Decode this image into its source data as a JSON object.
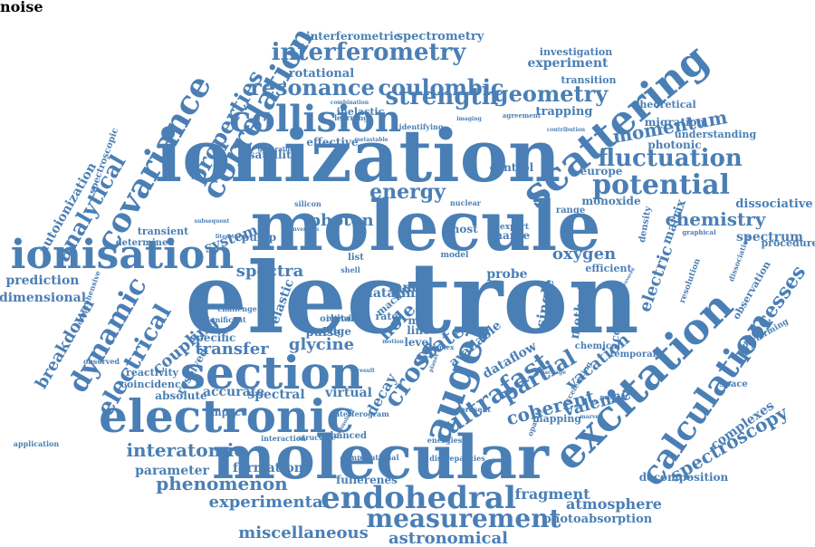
{
  "colors": {
    "word": "#4a7fb5",
    "background": "#ffffff"
  },
  "words": [
    {
      "text": "electron",
      "rotate": 0
    },
    {
      "text": "ionization",
      "rotate": 0
    },
    {
      "text": "molecule",
      "rotate": 0
    },
    {
      "text": "molecular",
      "rotate": 0
    },
    {
      "text": "electronic",
      "rotate": 0
    },
    {
      "text": "section",
      "rotate": 0
    },
    {
      "text": "ionisation",
      "rotate": 0
    },
    {
      "text": "auger",
      "rotate": -70
    },
    {
      "text": "excitation",
      "rotate": -45
    },
    {
      "text": "calculation",
      "rotate": -55
    },
    {
      "text": "scattering",
      "rotate": -40
    },
    {
      "text": "covariance",
      "rotate": -60
    },
    {
      "text": "correlation",
      "rotate": -60
    },
    {
      "text": "collision",
      "rotate": 0
    },
    {
      "text": "potential",
      "rotate": 0
    },
    {
      "text": "fluctuation",
      "rotate": 0
    },
    {
      "text": "endohedral",
      "rotate": 0
    },
    {
      "text": "measurement",
      "rotate": 0
    },
    {
      "text": "interferometry",
      "rotate": 0
    },
    {
      "text": "resonance",
      "rotate": 0
    },
    {
      "text": "coulombic",
      "rotate": 0
    },
    {
      "text": "strength",
      "rotate": 0
    },
    {
      "text": "geometry",
      "rotate": 0
    },
    {
      "text": "energy",
      "rotate": 0
    },
    {
      "text": "momentum",
      "rotate": -10
    },
    {
      "text": "chemistry",
      "rotate": 0
    },
    {
      "text": "processes",
      "rotate": -55
    },
    {
      "text": "spectroscopy",
      "rotate": -30
    },
    {
      "text": "interatomic",
      "rotate": 0
    },
    {
      "text": "phenomenon",
      "rotate": 0
    },
    {
      "text": "experimental",
      "rotate": 0
    },
    {
      "text": "miscellaneous",
      "rotate": 0
    },
    {
      "text": "astronomical",
      "rotate": 0
    },
    {
      "text": "atmosphere",
      "rotate": 0
    },
    {
      "text": "fragment",
      "rotate": 0
    },
    {
      "text": "decomposition",
      "rotate": 0
    },
    {
      "text": "complexes",
      "rotate": -35
    },
    {
      "text": "ultrafast",
      "rotate": -35
    },
    {
      "text": "cross",
      "rotate": -55
    },
    {
      "text": "state",
      "rotate": -35
    },
    {
      "text": "decay",
      "rotate": -60
    },
    {
      "text": "partial",
      "rotate": -30
    },
    {
      "text": "coherent",
      "rotate": -15
    },
    {
      "text": "valence",
      "rotate": -15
    },
    {
      "text": "vacation",
      "rotate": -40
    },
    {
      "text": "dynamic",
      "rotate": -60
    },
    {
      "text": "electrical",
      "rotate": -60
    },
    {
      "text": "properties",
      "rotate": -60
    },
    {
      "text": "analytical",
      "rotate": -60
    },
    {
      "text": "autoionization",
      "rotate": -60
    },
    {
      "text": "breakdown",
      "rotate": -60
    },
    {
      "text": "prediction",
      "rotate": 0
    },
    {
      "text": "dimensional",
      "rotate": 0
    },
    {
      "text": "spectroscopic",
      "rotate": -70
    },
    {
      "text": "transfer",
      "rotate": 0
    },
    {
      "text": "coupling",
      "rotate": -40
    },
    {
      "text": "resolved",
      "rotate": -60
    },
    {
      "text": "spectra",
      "rotate": 0
    },
    {
      "text": "photon",
      "rotate": 0
    },
    {
      "text": "system",
      "rotate": -20
    },
    {
      "text": "inner",
      "rotate": 0
    },
    {
      "text": "hole",
      "rotate": -45
    },
    {
      "text": "glycine",
      "rotate": 0
    },
    {
      "text": "spectral",
      "rotate": 0
    },
    {
      "text": "virtual",
      "rotate": 0
    },
    {
      "text": "accurate",
      "rotate": 0
    },
    {
      "text": "absolute",
      "rotate": 0
    },
    {
      "text": "parameter",
      "rotate": 0
    },
    {
      "text": "formation",
      "rotate": 0
    },
    {
      "text": "fullerenes",
      "rotate": 0
    },
    {
      "text": "photoabsorption",
      "rotate": 0
    },
    {
      "text": "spectrometry",
      "rotate": 0
    },
    {
      "text": "experiment",
      "rotate": 0
    },
    {
      "text": "rotational",
      "rotate": 0
    },
    {
      "text": "interferometric",
      "rotate": 0
    },
    {
      "text": "investigation",
      "rotate": 0
    },
    {
      "text": "transition",
      "rotate": 0
    },
    {
      "text": "trapping",
      "rotate": 0
    },
    {
      "text": "theoretical",
      "rotate": 0
    },
    {
      "text": "migration",
      "rotate": 0
    },
    {
      "text": "understanding",
      "rotate": 0
    },
    {
      "text": "photonic",
      "rotate": 0
    },
    {
      "text": "europe",
      "rotate": 0
    },
    {
      "text": "monoxide",
      "rotate": 0
    },
    {
      "text": "dissociative",
      "rotate": 0
    },
    {
      "text": "spectrum",
      "rotate": 0
    },
    {
      "text": "procedure",
      "rotate": 0
    },
    {
      "text": "electric",
      "rotate": -70
    },
    {
      "text": "matrix",
      "rotate": -70
    },
    {
      "text": "oxygen",
      "rotate": 0
    },
    {
      "text": "datatime",
      "rotate": 0
    },
    {
      "text": "probe",
      "rotate": 0
    },
    {
      "text": "single",
      "rotate": -80
    },
    {
      "text": "method",
      "rotate": -80
    },
    {
      "text": "cooling",
      "rotate": -80
    },
    {
      "text": "dataflow",
      "rotate": -30
    },
    {
      "text": "mapping",
      "rotate": 0
    },
    {
      "text": "control",
      "rotate": 0
    },
    {
      "text": "satellite",
      "rotate": 0
    },
    {
      "text": "effective",
      "rotate": 0
    },
    {
      "text": "inelastic",
      "rotate": 0
    },
    {
      "text": "transient",
      "rotate": 0
    },
    {
      "text": "pump",
      "rotate": 0
    },
    {
      "text": "elastic",
      "rotate": -70
    },
    {
      "text": "pulse",
      "rotate": 0
    },
    {
      "text": "impact",
      "rotate": 0
    },
    {
      "text": "specific",
      "rotate": 0
    },
    {
      "text": "reactivity",
      "rotate": 0
    },
    {
      "text": "coincidence",
      "rotate": 0
    },
    {
      "text": "interaction",
      "rotate": 0
    },
    {
      "text": "enhanced",
      "rotate": 0
    },
    {
      "text": "energies",
      "rotate": 0
    },
    {
      "text": "computational",
      "rotate": 0
    },
    {
      "text": "discrepancies",
      "rotate": 0
    },
    {
      "text": "determined",
      "rotate": 0
    },
    {
      "text": "comprehensive",
      "rotate": -70
    },
    {
      "text": "chemical",
      "rotate": 0
    },
    {
      "text": "available",
      "rotate": -40
    },
    {
      "text": "mas",
      "rotate": 0
    },
    {
      "text": "line",
      "rotate": 0
    },
    {
      "text": "level",
      "rotate": 0
    },
    {
      "text": "ghost",
      "rotate": 0
    },
    {
      "text": "nuclear",
      "rotate": 0
    },
    {
      "text": "expert",
      "rotate": 0
    },
    {
      "text": "charge",
      "rotate": 0
    },
    {
      "text": "model",
      "rotate": 0
    },
    {
      "text": "silicon",
      "rotate": 0
    },
    {
      "text": "edge",
      "rotate": 0
    },
    {
      "text": "density",
      "rotate": -80
    },
    {
      "text": "efficient",
      "rotate": 0
    },
    {
      "text": "complex",
      "rotate": 0
    },
    {
      "text": "space",
      "rotate": 0
    },
    {
      "text": "performing",
      "rotate": -30
    },
    {
      "text": "observation",
      "rotate": -60
    },
    {
      "text": "resolution",
      "rotate": -70
    },
    {
      "text": "dissociation",
      "rotate": -70
    },
    {
      "text": "application",
      "rotate": 0
    },
    {
      "text": "interferogram",
      "rotate": 0
    },
    {
      "text": "machine",
      "rotate": -40
    },
    {
      "text": "rate",
      "rotate": 0
    },
    {
      "text": "list",
      "rotate": 0
    },
    {
      "text": "shell",
      "rotate": 0
    },
    {
      "text": "range",
      "rotate": 0
    },
    {
      "text": "planet",
      "rotate": -70
    },
    {
      "text": "present",
      "rotate": 0
    },
    {
      "text": "opacity",
      "rotate": -70
    },
    {
      "text": "product",
      "rotate": 0
    },
    {
      "text": "temporal",
      "rotate": 0
    },
    {
      "text": "structure",
      "rotate": 0
    },
    {
      "text": "learning",
      "rotate": 0
    },
    {
      "text": "imaging",
      "rotate": 0
    },
    {
      "text": "agreement",
      "rotate": 0
    },
    {
      "text": "combination",
      "rotate": 0
    },
    {
      "text": "identifying",
      "rotate": 0
    },
    {
      "text": "metastable",
      "rotate": 0
    },
    {
      "text": "generation",
      "rotate": 0
    },
    {
      "text": "contribution",
      "rotate": 0
    },
    {
      "text": "subsequent",
      "rotate": 0
    },
    {
      "text": "literature",
      "rotate": 0
    },
    {
      "text": "graphical",
      "rotate": 0
    },
    {
      "text": "significant",
      "rotate": 0
    },
    {
      "text": "challenge",
      "rotate": 0
    },
    {
      "text": "observed",
      "rotate": 0
    },
    {
      "text": "measured",
      "rotate": -60
    },
    {
      "text": "package",
      "rotate": 0
    },
    {
      "text": "marvel",
      "rotate": 0
    },
    {
      "text": "accelerating",
      "rotate": -60
    },
    {
      "text": "orbital",
      "rotate": 0
    },
    {
      "text": "motion",
      "rotate": 0
    },
    {
      "text": "result",
      "rotate": 0
    },
    {
      "text": "technology",
      "rotate": -60
    },
    {
      "text": "conversion",
      "rotate": 0
    },
    {
      "text": "introduce",
      "rotate": 0
    },
    {
      "text": "noise",
      "rotate": 0
    }
  ]
}
